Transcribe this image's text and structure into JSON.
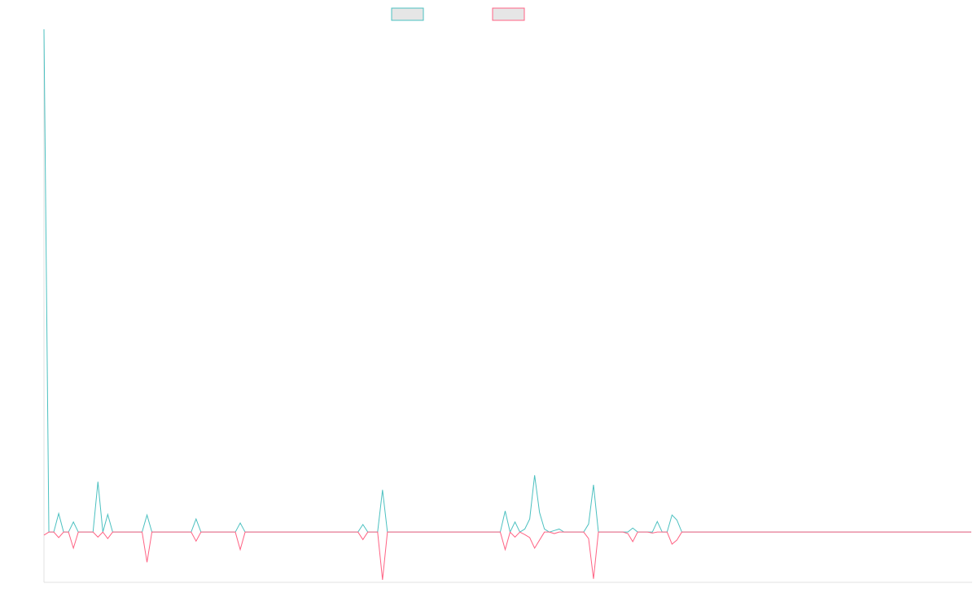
{
  "chart_data": {
    "type": "line",
    "categories": [
      null,
      null,
      null,
      null,
      null,
      null,
      null,
      null,
      null,
      null,
      null,
      null,
      null,
      null,
      null,
      null,
      null,
      null,
      null,
      null,
      null,
      null,
      null,
      null,
      null,
      null,
      null,
      null,
      null,
      null,
      null,
      null,
      null,
      null,
      null,
      null,
      null,
      null,
      null,
      null,
      null,
      null,
      null,
      null,
      null,
      null,
      null,
      null,
      null,
      null,
      null,
      null,
      null,
      null,
      null,
      null,
      null,
      null,
      null,
      null,
      null,
      null,
      null,
      null,
      null,
      null,
      null,
      null,
      null,
      null,
      null,
      null,
      null,
      null,
      null,
      null,
      null,
      null,
      null,
      null,
      null,
      null,
      null,
      null,
      null,
      null,
      null,
      null,
      null,
      null,
      null,
      null,
      null,
      null,
      null,
      null,
      null,
      null,
      null,
      null,
      null,
      null,
      null,
      null,
      null,
      null,
      null,
      null,
      null,
      null,
      null,
      null,
      null,
      null,
      null,
      null,
      null,
      null,
      null,
      null,
      null,
      null,
      null,
      null,
      null,
      null,
      null,
      null,
      null,
      null,
      null,
      null,
      null,
      null,
      null,
      null,
      null,
      null,
      null,
      null,
      null,
      null,
      null,
      null,
      null,
      null,
      null,
      null,
      null,
      null,
      null,
      null,
      null,
      null,
      null,
      null,
      null,
      null,
      null,
      null,
      null,
      null,
      null,
      null,
      null,
      null,
      null,
      null,
      null,
      null,
      null,
      null,
      null,
      null,
      null,
      null,
      null,
      null,
      null,
      null,
      null,
      null,
      null,
      null,
      null,
      null,
      null,
      null,
      null,
      null
    ],
    "series": [
      {
        "color": "#4bc0c0",
        "values": [
          100,
          0,
          0,
          3.7,
          0,
          0,
          2,
          0,
          0,
          0,
          0,
          10,
          0,
          3.5,
          0,
          0,
          0,
          0,
          0,
          0,
          0,
          3.4,
          0,
          0,
          0,
          0,
          0,
          0,
          0,
          0,
          0,
          2.6,
          0,
          0,
          0,
          0,
          0,
          0,
          0,
          0,
          1.8,
          0,
          0,
          0,
          0,
          0,
          0,
          0,
          0,
          0,
          0,
          0,
          0,
          0,
          0,
          0,
          0,
          0,
          0,
          0,
          0,
          0,
          0,
          0,
          0,
          1.5,
          0,
          0,
          0,
          8.4,
          0,
          0,
          0,
          0,
          0,
          0,
          0,
          0,
          0,
          0,
          0,
          0,
          0,
          0,
          0,
          0,
          0,
          0,
          0,
          0,
          0,
          0,
          0,
          0,
          4.2,
          0,
          2,
          0,
          0.6,
          2.6,
          11.3,
          3.9,
          0.6,
          0,
          0.3,
          0.6,
          0,
          0,
          0,
          0,
          0,
          1.6,
          9.4,
          0,
          0,
          0,
          0,
          0,
          0,
          0,
          0.8,
          0,
          0,
          0,
          0,
          2.1,
          0,
          0,
          3.4,
          2.4,
          0,
          0,
          0,
          0,
          0,
          0,
          0,
          0,
          0,
          0,
          0,
          0,
          0,
          0,
          0,
          0,
          0,
          0,
          0,
          0,
          0,
          0,
          0,
          0,
          0,
          0,
          0,
          0,
          0,
          0,
          0,
          0,
          0,
          0,
          0,
          0,
          0,
          0,
          0,
          0,
          0,
          0,
          0,
          0,
          0,
          0,
          0,
          0,
          0,
          0,
          0,
          0,
          0,
          0,
          0,
          0,
          0,
          0,
          0,
          0
        ]
      },
      {
        "color": "#ff6384",
        "values": [
          -0.6,
          0,
          0,
          -1.1,
          0,
          0,
          -3.2,
          0,
          0,
          0,
          0,
          -1,
          0,
          -1.3,
          0,
          0,
          0,
          0,
          0,
          0,
          0,
          -6,
          0,
          0,
          0,
          0,
          0,
          0,
          0,
          0,
          0,
          -1.8,
          0,
          0,
          0,
          0,
          0,
          0,
          0,
          0,
          -3.5,
          0,
          0,
          0,
          0,
          0,
          0,
          0,
          0,
          0,
          0,
          0,
          0,
          0,
          0,
          0,
          0,
          0,
          0,
          0,
          0,
          0,
          0,
          0,
          0,
          -1.5,
          0,
          0,
          0,
          -9.5,
          0,
          0,
          0,
          0,
          0,
          0,
          0,
          0,
          0,
          0,
          0,
          0,
          0,
          0,
          0,
          0,
          0,
          0,
          0,
          0,
          0,
          0,
          0,
          0,
          -3.5,
          0,
          -1,
          0,
          -0.5,
          -1.1,
          -3.2,
          -1.6,
          0,
          0,
          -0.3,
          0,
          0,
          0,
          0,
          0,
          0,
          -1.3,
          -9.3,
          0,
          0,
          0,
          0,
          0,
          0,
          -0.3,
          -1.9,
          0,
          0,
          0,
          -0.2,
          0,
          0,
          0,
          -2.4,
          -1.6,
          0,
          0,
          0,
          0,
          0,
          0,
          0,
          0,
          0,
          0,
          0,
          0,
          0,
          0,
          0,
          0,
          0,
          0,
          0,
          0,
          0,
          0,
          0,
          0,
          0,
          0,
          0,
          0,
          0,
          0,
          0,
          0,
          0,
          0,
          0,
          0,
          0,
          0,
          0,
          0,
          0,
          0,
          0,
          0,
          0,
          0,
          0,
          0,
          0,
          0,
          0,
          0,
          0,
          0,
          0,
          0,
          0,
          0,
          0,
          0
        ]
      }
    ],
    "ylim": [
      -10,
      100
    ]
  }
}
